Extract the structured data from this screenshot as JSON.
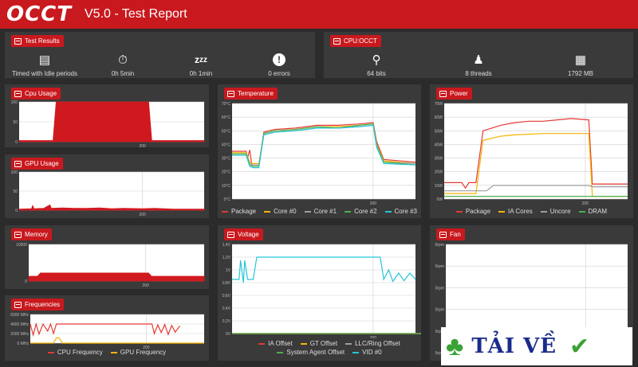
{
  "header": {
    "logo": "OCCT",
    "title": "V5.0 - Test Report"
  },
  "test_results": {
    "title": "Test Results",
    "items": [
      {
        "icon": "calendar-clock-icon",
        "value": "Timed with Idle periods"
      },
      {
        "icon": "stopwatch-icon",
        "value": "0h 5min"
      },
      {
        "icon": "sleep-icon",
        "value": "0h 1min"
      },
      {
        "icon": "warning-icon",
        "value": "0 errors"
      }
    ]
  },
  "cpu_occt": {
    "title": "CPU:OCCT",
    "items": [
      {
        "icon": "fork-icon",
        "value": "64 bits"
      },
      {
        "icon": "threads-icon",
        "value": "8 threads"
      },
      {
        "icon": "chip-icon",
        "value": "1792 MB"
      }
    ]
  },
  "panels": {
    "cpu_usage": "Cpu Usage",
    "gpu_usage": "GPU Usage",
    "memory": "Memory",
    "frequencies": "Frequencies",
    "temperature": "Temperature",
    "voltage": "Voltage",
    "power": "Power",
    "fan": "Fan"
  },
  "colors": {
    "accent": "#c8191e",
    "panel": "#3a3a3a",
    "background": "#2b2b2b"
  },
  "chart_data": [
    {
      "id": "cpu_usage",
      "type": "area",
      "yticks": [
        "100",
        "50",
        "0"
      ],
      "xtick": "200",
      "ylim": [
        0,
        100
      ],
      "series": [
        {
          "color": "#d0191e",
          "points": [
            [
              0,
              3
            ],
            [
              55,
              3
            ],
            [
              60,
              100
            ],
            [
              210,
              100
            ],
            [
              215,
              3
            ],
            [
              300,
              3
            ]
          ]
        }
      ]
    },
    {
      "id": "gpu_usage",
      "type": "area",
      "yticks": [
        "100",
        "50",
        "0"
      ],
      "xtick": "200",
      "ylim": [
        0,
        100
      ],
      "series": [
        {
          "color": "#d0191e",
          "points": [
            [
              0,
              3
            ],
            [
              20,
              4
            ],
            [
              22,
              12
            ],
            [
              24,
              4
            ],
            [
              40,
              5
            ],
            [
              50,
              14
            ],
            [
              52,
              5
            ],
            [
              70,
              6
            ],
            [
              90,
              5
            ],
            [
              110,
              5
            ],
            [
              130,
              6
            ],
            [
              150,
              4
            ],
            [
              170,
              5
            ],
            [
              200,
              4
            ],
            [
              220,
              5
            ],
            [
              250,
              3
            ],
            [
              300,
              3
            ]
          ]
        }
      ]
    },
    {
      "id": "memory",
      "type": "area",
      "yticks": [
        "10000",
        "0"
      ],
      "xtick": "200",
      "ylim": [
        0,
        20000
      ],
      "series": [
        {
          "color": "#d0191e",
          "points": [
            [
              0,
              2600
            ],
            [
              15,
              2600
            ],
            [
              20,
              4400
            ],
            [
              205,
              4400
            ],
            [
              210,
              2600
            ],
            [
              300,
              2600
            ]
          ]
        }
      ]
    },
    {
      "id": "frequencies",
      "type": "line",
      "yticks": [
        "6000 MHz",
        "4000 MHz",
        "2000 MHz",
        "0 MHz"
      ],
      "xtick": "200",
      "ylim": [
        0,
        6000
      ],
      "series": [
        {
          "name": "CPU Frequency",
          "color": "#e53935",
          "points": [
            [
              0,
              4000
            ],
            [
              5,
              1700
            ],
            [
              10,
              4000
            ],
            [
              15,
              1900
            ],
            [
              22,
              4000
            ],
            [
              30,
              2500
            ],
            [
              35,
              4000
            ],
            [
              40,
              2000
            ],
            [
              45,
              4000
            ],
            [
              55,
              4000
            ],
            [
              210,
              4000
            ],
            [
              214,
              2000
            ],
            [
              220,
              3800
            ],
            [
              226,
              2200
            ],
            [
              232,
              3900
            ],
            [
              238,
              1800
            ],
            [
              244,
              3700
            ],
            [
              250,
              2300
            ],
            [
              258,
              3600
            ]
          ]
        },
        {
          "name": "GPU Frequency",
          "color": "#f4b400",
          "points": [
            [
              0,
              0
            ],
            [
              40,
              0
            ],
            [
              45,
              1100
            ],
            [
              50,
              1100
            ],
            [
              55,
              0
            ],
            [
              300,
              0
            ]
          ]
        }
      ]
    },
    {
      "id": "temperature",
      "type": "line",
      "yticks": [
        "70°C",
        "60°C",
        "50°C",
        "40°C",
        "30°C",
        "20°C",
        "10°C",
        "0°C"
      ],
      "xtick": "200",
      "ylim": [
        0,
        70
      ],
      "series": [
        {
          "name": "Package",
          "color": "#e53935",
          "points": [
            [
              0,
              35
            ],
            [
              20,
              35
            ],
            [
              22,
              30
            ],
            [
              25,
              36
            ],
            [
              28,
              25
            ],
            [
              30,
              25
            ],
            [
              38,
              25
            ],
            [
              45,
              49
            ],
            [
              60,
              51
            ],
            [
              90,
              52
            ],
            [
              120,
              54
            ],
            [
              150,
              54
            ],
            [
              180,
              55
            ],
            [
              200,
              56
            ],
            [
              205,
              42
            ],
            [
              215,
              29
            ],
            [
              260,
              27
            ]
          ]
        },
        {
          "name": "Core #0",
          "color": "#f4b400",
          "points": [
            [
              0,
              34
            ],
            [
              20,
              34
            ],
            [
              25,
              27
            ],
            [
              30,
              26
            ],
            [
              38,
              26
            ],
            [
              45,
              48
            ],
            [
              60,
              50
            ],
            [
              90,
              51
            ],
            [
              120,
              53
            ],
            [
              150,
              53
            ],
            [
              180,
              54
            ],
            [
              200,
              55
            ],
            [
              205,
              40
            ],
            [
              215,
              28
            ],
            [
              260,
              26
            ]
          ]
        },
        {
          "name": "Core #1",
          "color": "#9e9e9e",
          "points": [
            [
              0,
              33
            ],
            [
              20,
              33
            ],
            [
              25,
              26
            ],
            [
              30,
              25
            ],
            [
              38,
              25
            ],
            [
              45,
              47
            ],
            [
              60,
              49
            ],
            [
              90,
              50
            ],
            [
              120,
              52
            ],
            [
              150,
              52
            ],
            [
              180,
              53
            ],
            [
              200,
              54
            ],
            [
              205,
              39
            ],
            [
              215,
              27
            ],
            [
              260,
              26
            ]
          ]
        },
        {
          "name": "Core #2",
          "color": "#4caf50",
          "points": [
            [
              0,
              33
            ],
            [
              20,
              33
            ],
            [
              25,
              25
            ],
            [
              30,
              24
            ],
            [
              38,
              24
            ],
            [
              45,
              48
            ],
            [
              60,
              50
            ],
            [
              90,
              51
            ],
            [
              120,
              53
            ],
            [
              150,
              52
            ],
            [
              180,
              54
            ],
            [
              200,
              55
            ],
            [
              205,
              39
            ],
            [
              215,
              27
            ],
            [
              260,
              25
            ]
          ]
        },
        {
          "name": "Core #3",
          "color": "#26c6da",
          "points": [
            [
              0,
              32
            ],
            [
              20,
              32
            ],
            [
              25,
              24
            ],
            [
              30,
              23
            ],
            [
              38,
              23
            ],
            [
              45,
              47
            ],
            [
              60,
              49
            ],
            [
              90,
              50
            ],
            [
              120,
              52
            ],
            [
              150,
              52
            ],
            [
              180,
              53
            ],
            [
              200,
              54
            ],
            [
              205,
              38
            ],
            [
              215,
              26
            ],
            [
              260,
              25
            ]
          ]
        }
      ]
    },
    {
      "id": "voltage",
      "type": "line",
      "yticks": [
        "1,4V",
        "1,2V",
        "1V",
        "0,8V",
        "0,6V",
        "0,4V",
        "0,2V",
        "0V"
      ],
      "xtick": "200",
      "ylim": [
        0,
        1.4
      ],
      "series": [
        {
          "name": "IA Offset",
          "color": "#e53935",
          "points": [
            [
              0,
              0
            ],
            [
              300,
              0
            ]
          ]
        },
        {
          "name": "GT Offset",
          "color": "#f4b400",
          "points": [
            [
              0,
              0
            ],
            [
              300,
              0
            ]
          ]
        },
        {
          "name": "LLC/Ring Offset",
          "color": "#9e9e9e",
          "points": [
            [
              0,
              0
            ],
            [
              300,
              0
            ]
          ]
        },
        {
          "name": "System Agent Offset",
          "color": "#4caf50",
          "points": [
            [
              0,
              0
            ],
            [
              300,
              0
            ]
          ]
        },
        {
          "name": "VID #0",
          "color": "#26c6da",
          "points": [
            [
              0,
              0.85
            ],
            [
              10,
              0.85
            ],
            [
              12,
              1.15
            ],
            [
              16,
              0.8
            ],
            [
              18,
              1.15
            ],
            [
              22,
              0.85
            ],
            [
              30,
              0.85
            ],
            [
              35,
              1.2
            ],
            [
              210,
              1.2
            ],
            [
              215,
              0.85
            ],
            [
              222,
              1.0
            ],
            [
              228,
              0.82
            ],
            [
              236,
              0.95
            ],
            [
              244,
              0.83
            ],
            [
              252,
              0.95
            ],
            [
              260,
              0.85
            ]
          ]
        }
      ]
    },
    {
      "id": "power",
      "type": "line",
      "yticks": [
        "70W",
        "60W",
        "50W",
        "40W",
        "30W",
        "20W",
        "10W",
        "0W"
      ],
      "xtick": "200",
      "ylim": [
        0,
        70
      ],
      "series": [
        {
          "name": "Package",
          "color": "#e53935",
          "points": [
            [
              0,
              12
            ],
            [
              25,
              12
            ],
            [
              30,
              8
            ],
            [
              35,
              12
            ],
            [
              45,
              12
            ],
            [
              55,
              50
            ],
            [
              80,
              54
            ],
            [
              100,
              56
            ],
            [
              120,
              57
            ],
            [
              140,
              57
            ],
            [
              160,
              58
            ],
            [
              180,
              59
            ],
            [
              205,
              58
            ],
            [
              210,
              11
            ],
            [
              260,
              11
            ]
          ]
        },
        {
          "name": "IA Cores",
          "color": "#f4b400",
          "points": [
            [
              0,
              4
            ],
            [
              45,
              4
            ],
            [
              55,
              43
            ],
            [
              80,
              46
            ],
            [
              100,
              47
            ],
            [
              140,
              48
            ],
            [
              180,
              48
            ],
            [
              205,
              48
            ],
            [
              210,
              2
            ],
            [
              260,
              2
            ]
          ]
        },
        {
          "name": "Uncore",
          "color": "#9e9e9e",
          "points": [
            [
              0,
              6
            ],
            [
              60,
              6
            ],
            [
              70,
              10
            ],
            [
              205,
              10
            ],
            [
              210,
              9
            ],
            [
              260,
              9
            ]
          ]
        },
        {
          "name": "DRAM",
          "color": "#4caf50",
          "points": [
            [
              0,
              2
            ],
            [
              260,
              2
            ]
          ]
        }
      ]
    },
    {
      "id": "fan",
      "type": "line",
      "yticks": [
        "0rpm",
        "0rpm",
        "0rpm",
        "0rpm",
        "0rpm",
        "0rpm"
      ],
      "xtick": "200",
      "ylim": [
        0,
        1
      ],
      "series": []
    }
  ],
  "watermark": {
    "text": "TẢI VỀ"
  }
}
